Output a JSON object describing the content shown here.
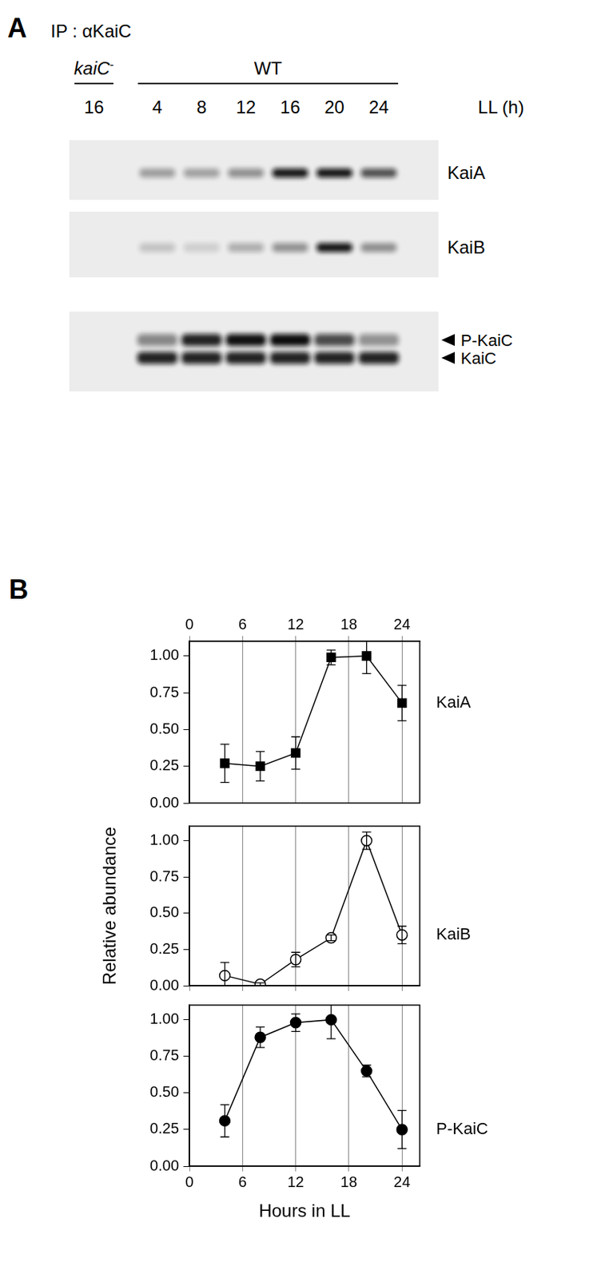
{
  "panel_a": {
    "letter": "A",
    "title": "IP : αKaiC",
    "lane_groups": [
      {
        "label": "kaiC",
        "superscript": "-",
        "hours": [
          16
        ]
      },
      {
        "label": "WT",
        "hours": [
          4,
          8,
          12,
          16,
          20,
          24
        ]
      }
    ],
    "lane_unit": "LL (h)",
    "blots": [
      {
        "labels": [
          "KaiA"
        ]
      },
      {
        "labels": [
          "KaiB"
        ]
      },
      {
        "labels": [
          "P-KaiC",
          "KaiC"
        ]
      }
    ]
  },
  "panel_b": {
    "letter": "B"
  },
  "chart_data": [
    {
      "type": "line",
      "x": [
        4,
        8,
        12,
        16,
        20,
        24
      ],
      "xlim": [
        0,
        26
      ],
      "xticks": [
        0,
        6,
        12,
        18,
        24
      ],
      "ylim": [
        0,
        1.1
      ],
      "yticks": [
        {
          "value": 0,
          "label": "0.00"
        },
        {
          "value": 0.25,
          "label": "0.25"
        },
        {
          "value": 0.5,
          "label": "0.50"
        },
        {
          "value": 0.75,
          "label": "0.75"
        },
        {
          "value": 1,
          "label": "1.00"
        }
      ],
      "grid": true,
      "series": [
        {
          "name": "KaiA",
          "color": "#000000",
          "marker": "square",
          "values": [
            0.27,
            0.25,
            0.34,
            0.99,
            1.0,
            0.68
          ],
          "errors": [
            0.13,
            0.1,
            0.11,
            0.05,
            0.12,
            0.12
          ]
        }
      ]
    },
    {
      "type": "line",
      "x": [
        4,
        8,
        12,
        16,
        20,
        24
      ],
      "xlim": [
        0,
        26
      ],
      "xticks": [
        0,
        6,
        12,
        18,
        24
      ],
      "ylim": [
        0,
        1.1
      ],
      "yticks": [
        {
          "value": 0,
          "label": "0.00"
        },
        {
          "value": 0.25,
          "label": "0.25"
        },
        {
          "value": 0.5,
          "label": "0.50"
        },
        {
          "value": 0.75,
          "label": "0.75"
        },
        {
          "value": 1,
          "label": "1.00"
        }
      ],
      "ylabel": "Relative abundance",
      "grid": true,
      "tick_labels": "y",
      "series": [
        {
          "name": "KaiB",
          "color": "#000000",
          "marker": "open_circle",
          "values": [
            0.07,
            0.01,
            0.18,
            0.33,
            1.0,
            0.35
          ],
          "errors": [
            0.09,
            0.01,
            0.05,
            0.02,
            0.06,
            0.06
          ]
        }
      ]
    },
    {
      "type": "line",
      "x": [
        4,
        8,
        12,
        16,
        20,
        24
      ],
      "xlim": [
        0,
        26
      ],
      "xticks": [
        0,
        6,
        12,
        18,
        24
      ],
      "ylim": [
        0,
        1.1
      ],
      "yticks": [
        {
          "value": 0,
          "label": "0.00"
        },
        {
          "value": 0.25,
          "label": "0.25"
        },
        {
          "value": 0.5,
          "label": "0.50"
        },
        {
          "value": 0.75,
          "label": "0.75"
        },
        {
          "value": 1,
          "label": "1.00"
        }
      ],
      "xlabel": "Hours in LL",
      "grid": true,
      "series": [
        {
          "name": "P-KaiC",
          "color": "#000000",
          "marker": "circle",
          "values": [
            0.31,
            0.88,
            0.98,
            1.0,
            0.65,
            0.25
          ],
          "errors": [
            0.11,
            0.07,
            0.06,
            0.13,
            0.04,
            0.13
          ]
        }
      ]
    }
  ]
}
